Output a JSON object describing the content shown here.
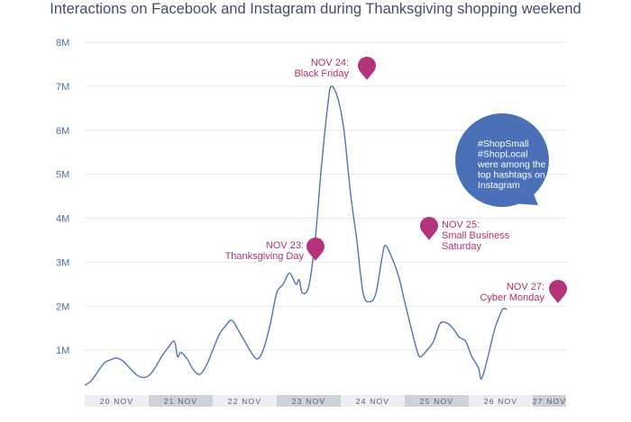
{
  "chart_data": {
    "type": "line",
    "title": "Interactions on Facebook and Instagram during Thanksgiving shopping weekend",
    "ylim": [
      0,
      8000000
    ],
    "y_ticks": [
      {
        "value": 1000000,
        "label": "1M"
      },
      {
        "value": 2000000,
        "label": "2M"
      },
      {
        "value": 3000000,
        "label": "3M"
      },
      {
        "value": 4000000,
        "label": "4M"
      },
      {
        "value": 5000000,
        "label": "5M"
      },
      {
        "value": 6000000,
        "label": "6M"
      },
      {
        "value": 7000000,
        "label": "7M"
      },
      {
        "value": 8000000,
        "label": "8M"
      }
    ],
    "grid": true,
    "days": [
      {
        "label": "20 NOV",
        "shaded": false
      },
      {
        "label": "21 NOV",
        "shaded": true
      },
      {
        "label": "22 NOV",
        "shaded": false
      },
      {
        "label": "23 NOV",
        "shaded": true
      },
      {
        "label": "24 NOV",
        "shaded": false
      },
      {
        "label": "25 NOV",
        "shaded": true
      },
      {
        "label": "26 NOV",
        "shaded": false
      },
      {
        "label": "27 NOV",
        "shaded": true
      }
    ],
    "x_range": [
      0,
      7.6
    ],
    "series": [
      {
        "color": "#4f74b8",
        "points": [
          [
            0.0,
            0.2
          ],
          [
            0.1,
            0.3
          ],
          [
            0.2,
            0.5
          ],
          [
            0.3,
            0.7
          ],
          [
            0.4,
            0.78
          ],
          [
            0.5,
            0.82
          ],
          [
            0.6,
            0.75
          ],
          [
            0.7,
            0.6
          ],
          [
            0.8,
            0.45
          ],
          [
            0.9,
            0.38
          ],
          [
            1.0,
            0.42
          ],
          [
            1.1,
            0.6
          ],
          [
            1.2,
            0.85
          ],
          [
            1.3,
            1.05
          ],
          [
            1.4,
            1.2
          ],
          [
            1.45,
            0.85
          ],
          [
            1.5,
            0.95
          ],
          [
            1.6,
            0.8
          ],
          [
            1.7,
            0.55
          ],
          [
            1.8,
            0.45
          ],
          [
            1.9,
            0.65
          ],
          [
            2.0,
            1.0
          ],
          [
            2.1,
            1.35
          ],
          [
            2.2,
            1.55
          ],
          [
            2.3,
            1.68
          ],
          [
            2.4,
            1.45
          ],
          [
            2.5,
            1.2
          ],
          [
            2.6,
            0.95
          ],
          [
            2.7,
            0.8
          ],
          [
            2.8,
            1.05
          ],
          [
            2.9,
            1.6
          ],
          [
            3.0,
            2.3
          ],
          [
            3.1,
            2.5
          ],
          [
            3.2,
            2.75
          ],
          [
            3.3,
            2.5
          ],
          [
            3.35,
            2.6
          ],
          [
            3.4,
            2.3
          ],
          [
            3.5,
            2.45
          ],
          [
            3.6,
            3.5
          ],
          [
            3.7,
            5.2
          ],
          [
            3.8,
            6.6
          ],
          [
            3.85,
            7.0
          ],
          [
            3.95,
            6.75
          ],
          [
            4.05,
            6.0
          ],
          [
            4.15,
            4.6
          ],
          [
            4.25,
            3.5
          ],
          [
            4.35,
            2.3
          ],
          [
            4.45,
            2.1
          ],
          [
            4.55,
            2.3
          ],
          [
            4.65,
            3.15
          ],
          [
            4.7,
            3.38
          ],
          [
            4.8,
            3.1
          ],
          [
            4.9,
            2.7
          ],
          [
            5.0,
            2.1
          ],
          [
            5.1,
            1.5
          ],
          [
            5.2,
            0.95
          ],
          [
            5.25,
            0.85
          ],
          [
            5.35,
            1.0
          ],
          [
            5.45,
            1.2
          ],
          [
            5.55,
            1.6
          ],
          [
            5.65,
            1.62
          ],
          [
            5.75,
            1.5
          ],
          [
            5.85,
            1.3
          ],
          [
            5.95,
            1.2
          ],
          [
            6.05,
            0.85
          ],
          [
            6.15,
            0.6
          ],
          [
            6.2,
            0.35
          ],
          [
            6.3,
            0.85
          ],
          [
            6.4,
            1.45
          ],
          [
            6.5,
            1.85
          ],
          [
            6.55,
            1.95
          ],
          [
            6.6,
            1.92
          ]
        ]
      }
    ],
    "annotations": [
      {
        "label": "NOV 23:",
        "sublabel": "Thanksgiving Day",
        "x": 3.2,
        "y": 2.75
      },
      {
        "label": "NOV 24:",
        "sublabel": "Black Friday",
        "x": 3.85,
        "y": 7.0
      },
      {
        "label": "NOV 25:",
        "sublabel": "Small Business",
        "sublabel2": "Saturday",
        "x": 4.7,
        "y": 3.38
      },
      {
        "label": "NOV 27:",
        "sublabel": "Cyber Monday",
        "x": 6.55,
        "y": 1.95
      }
    ],
    "callout": {
      "lines": [
        "#ShopSmall",
        "#ShopLocal",
        "were among the",
        "top hashtags on",
        "Instagram"
      ],
      "color": "#4a70b8"
    }
  }
}
